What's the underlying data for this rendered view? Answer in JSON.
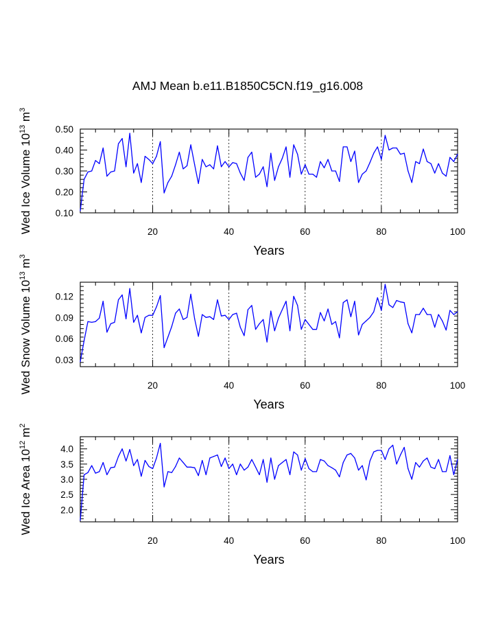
{
  "figure_title": "AMJ Mean b.e11.B1850C5CN.f19_g16.008",
  "chart_data": [
    {
      "type": "line",
      "ylabel": "Wed Ice Volume 10^13 m^3",
      "ylabel_parts": {
        "main": "Wed Ice Volume 10",
        "exp": "13",
        "unit": "m",
        "unit_exp": "3"
      },
      "xlabel": "Years",
      "xlim": [
        1,
        100
      ],
      "ylim": [
        0.1,
        0.5
      ],
      "xticks": [
        20,
        40,
        60,
        80,
        100
      ],
      "xtick_labels": [
        "20",
        "40",
        "60",
        "80",
        "100"
      ],
      "yticks": [
        0.1,
        0.2,
        0.3,
        0.4,
        0.5
      ],
      "ytick_labels": [
        "0.10",
        "0.20",
        "0.30",
        "0.40",
        "0.50"
      ],
      "grid": "dashed vertical at x = 20, 40, 60, 80",
      "line_color": "#0000ff",
      "series": [
        {
          "name": "Wed Ice Volume",
          "x_start": 1,
          "x_step": 1,
          "values": [
            0.11,
            0.26,
            0.295,
            0.3,
            0.35,
            0.335,
            0.41,
            0.275,
            0.295,
            0.3,
            0.43,
            0.455,
            0.32,
            0.48,
            0.29,
            0.335,
            0.245,
            0.37,
            0.355,
            0.335,
            0.37,
            0.44,
            0.195,
            0.245,
            0.275,
            0.33,
            0.39,
            0.31,
            0.325,
            0.425,
            0.33,
            0.24,
            0.355,
            0.32,
            0.33,
            0.31,
            0.42,
            0.32,
            0.345,
            0.32,
            0.34,
            0.335,
            0.29,
            0.255,
            0.365,
            0.39,
            0.27,
            0.285,
            0.32,
            0.225,
            0.385,
            0.255,
            0.32,
            0.36,
            0.415,
            0.27,
            0.425,
            0.38,
            0.285,
            0.33,
            0.285,
            0.285,
            0.27,
            0.345,
            0.315,
            0.355,
            0.3,
            0.3,
            0.25,
            0.415,
            0.415,
            0.345,
            0.395,
            0.245,
            0.285,
            0.3,
            0.34,
            0.385,
            0.415,
            0.355,
            0.47,
            0.4,
            0.41,
            0.41,
            0.38,
            0.385,
            0.3,
            0.245,
            0.345,
            0.335,
            0.405,
            0.345,
            0.335,
            0.29,
            0.335,
            0.29,
            0.275,
            0.365,
            0.345,
            0.38
          ]
        }
      ]
    },
    {
      "type": "line",
      "ylabel": "Wed Snow Volume 10^13 m^3",
      "ylabel_parts": {
        "main": "Wed Snow Volume 10",
        "exp": "13",
        "unit": "m",
        "unit_exp": "3"
      },
      "xlabel": "Years",
      "xlim": [
        1,
        100
      ],
      "ylim": [
        0.02,
        0.14
      ],
      "xticks": [
        20,
        40,
        60,
        80,
        100
      ],
      "xtick_labels": [
        "20",
        "40",
        "60",
        "80",
        "100"
      ],
      "yticks": [
        0.03,
        0.06,
        0.09,
        0.12
      ],
      "ytick_labels": [
        "0.03",
        "0.06",
        "0.09",
        "0.12"
      ],
      "grid": "dashed vertical at x = 20, 40, 60, 80",
      "line_color": "#0000ff",
      "series": [
        {
          "name": "Wed Snow Volume",
          "x_start": 1,
          "x_step": 1,
          "values": [
            0.027,
            0.057,
            0.084,
            0.083,
            0.084,
            0.089,
            0.113,
            0.069,
            0.081,
            0.083,
            0.115,
            0.122,
            0.088,
            0.131,
            0.083,
            0.093,
            0.068,
            0.09,
            0.093,
            0.093,
            0.105,
            0.121,
            0.047,
            0.062,
            0.077,
            0.096,
            0.102,
            0.087,
            0.09,
            0.123,
            0.088,
            0.063,
            0.094,
            0.09,
            0.091,
            0.087,
            0.115,
            0.092,
            0.093,
            0.087,
            0.094,
            0.096,
            0.076,
            0.064,
            0.101,
            0.107,
            0.073,
            0.081,
            0.087,
            0.055,
            0.099,
            0.071,
            0.089,
            0.101,
            0.113,
            0.071,
            0.12,
            0.107,
            0.073,
            0.087,
            0.08,
            0.073,
            0.073,
            0.097,
            0.085,
            0.102,
            0.08,
            0.084,
            0.061,
            0.111,
            0.115,
            0.091,
            0.113,
            0.065,
            0.08,
            0.085,
            0.09,
            0.098,
            0.118,
            0.1,
            0.137,
            0.108,
            0.104,
            0.114,
            0.112,
            0.111,
            0.081,
            0.068,
            0.094,
            0.094,
            0.103,
            0.094,
            0.094,
            0.076,
            0.094,
            0.085,
            0.072,
            0.1,
            0.094,
            0.098
          ]
        }
      ]
    },
    {
      "type": "line",
      "ylabel": "Wed Ice Area 10^12 m^2",
      "ylabel_parts": {
        "main": "Wed Ice Area 10",
        "exp": "12",
        "unit": "m",
        "unit_exp": "2"
      },
      "xlabel": "Years",
      "xlim": [
        1,
        100
      ],
      "ylim": [
        1.6,
        4.4
      ],
      "xticks": [
        20,
        40,
        60,
        80,
        100
      ],
      "xtick_labels": [
        "20",
        "40",
        "60",
        "80",
        "100"
      ],
      "yticks": [
        2.0,
        2.5,
        3.0,
        3.5,
        4.0
      ],
      "ytick_labels": [
        "2.0",
        "2.5",
        "3.0",
        "3.5",
        "4.0"
      ],
      "grid": "dashed vertical at x = 20, 40, 60, 80",
      "line_color": "#0000ff",
      "series": [
        {
          "name": "Wed Ice Area",
          "x_start": 1,
          "x_step": 1,
          "values": [
            1.65,
            3.15,
            3.22,
            3.45,
            3.2,
            3.25,
            3.55,
            3.15,
            3.38,
            3.4,
            3.75,
            4.0,
            3.6,
            3.98,
            3.45,
            3.65,
            3.1,
            3.62,
            3.42,
            3.35,
            3.7,
            4.18,
            2.75,
            3.25,
            3.22,
            3.42,
            3.7,
            3.55,
            3.4,
            3.4,
            3.38,
            3.12,
            3.62,
            3.15,
            3.7,
            3.75,
            3.8,
            3.42,
            3.7,
            3.35,
            3.5,
            3.15,
            3.5,
            3.3,
            3.4,
            3.65,
            3.4,
            3.15,
            3.65,
            2.9,
            3.7,
            3.0,
            3.45,
            3.55,
            3.65,
            3.15,
            3.9,
            3.8,
            3.3,
            3.68,
            3.35,
            3.25,
            3.25,
            3.65,
            3.6,
            3.45,
            3.38,
            3.3,
            3.08,
            3.55,
            3.8,
            3.85,
            3.7,
            3.3,
            3.45,
            2.98,
            3.6,
            3.9,
            3.95,
            3.95,
            3.65,
            4.0,
            4.12,
            3.5,
            3.8,
            4.05,
            3.35,
            3.0,
            3.55,
            3.4,
            3.6,
            3.7,
            3.4,
            3.35,
            3.65,
            3.25,
            3.25,
            3.78,
            3.15,
            3.65
          ]
        }
      ]
    }
  ]
}
